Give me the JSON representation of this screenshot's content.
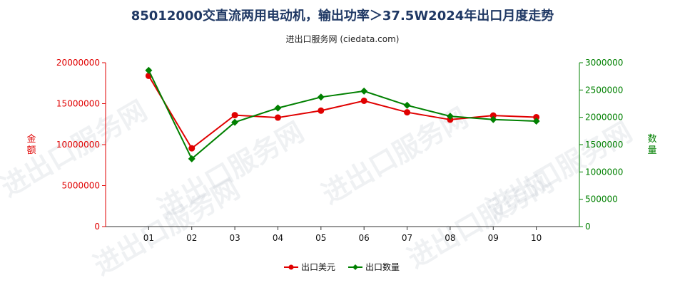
{
  "title": "85012000交直流两用电动机，输出功率＞37.5W2024年出口月度走势",
  "subtitle": "进出口服务网 (ciedata.com)",
  "watermark": "进出口服务网",
  "colors": {
    "export_value": "#e00000",
    "export_qty": "#008000",
    "title": "#1f3864"
  },
  "chart_data": {
    "type": "line",
    "categories": [
      "01",
      "02",
      "03",
      "04",
      "05",
      "06",
      "07",
      "08",
      "09",
      "10"
    ],
    "series": [
      {
        "name": "出口美元",
        "axis": "left",
        "values": [
          18400000,
          9550000,
          13600000,
          13300000,
          14150000,
          15350000,
          13950000,
          13050000,
          13550000,
          13350000
        ]
      },
      {
        "name": "出口数量",
        "axis": "right",
        "values": [
          2860000,
          1240000,
          1910000,
          2170000,
          2370000,
          2480000,
          2220000,
          2020000,
          1960000,
          1930000
        ]
      }
    ],
    "y_left": {
      "label": "金额",
      "ylim": [
        0,
        20000000
      ],
      "ticks": [
        "0",
        "5000000",
        "10000000",
        "15000000",
        "20000000"
      ],
      "tick_values": [
        0,
        5000000,
        10000000,
        15000000,
        20000000
      ]
    },
    "y_right": {
      "label": "数量",
      "ylim": [
        0,
        3000000
      ],
      "ticks": [
        "0",
        "500000",
        "1000000",
        "1500000",
        "2000000",
        "2500000",
        "3000000"
      ],
      "tick_values": [
        0,
        500000,
        1000000,
        1500000,
        2000000,
        2500000,
        3000000
      ]
    },
    "legend": {
      "placement": "bottom",
      "items": [
        "出口美元",
        "出口数量"
      ]
    },
    "grid": false
  }
}
